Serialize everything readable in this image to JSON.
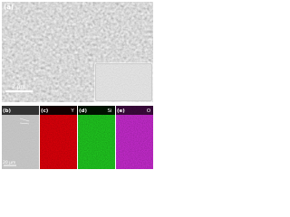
{
  "panels": [
    {
      "label": "(a)",
      "scale_bar": "2 μm"
    },
    {
      "label": "(b)",
      "scale_bar": "20 μm"
    },
    {
      "label": "(c)",
      "element": "Y"
    },
    {
      "label": "(d)",
      "element": "Si"
    },
    {
      "label": "(e)",
      "element": "O"
    }
  ]
}
